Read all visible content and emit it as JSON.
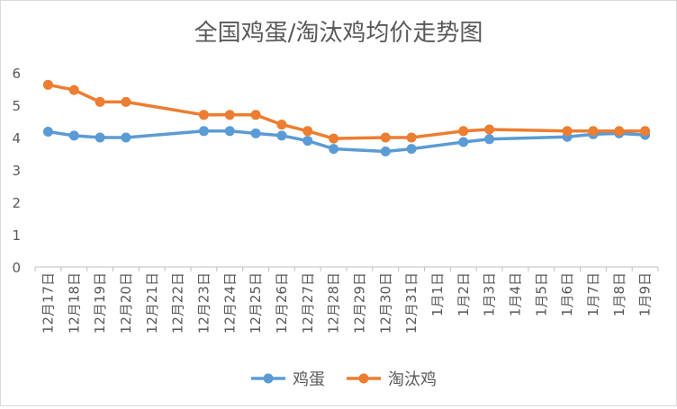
{
  "chart_data": {
    "type": "line",
    "title": "全国鸡蛋/淘汰鸡均价走势图",
    "xlabel": "",
    "ylabel": "",
    "ylim": [
      0,
      6
    ],
    "yticks": [
      "0",
      "1",
      "2",
      "3",
      "4",
      "5",
      "6"
    ],
    "grid": false,
    "legend_position": "bottom",
    "categories": [
      "12月17日",
      "12月18日",
      "12月19日",
      "12月20日",
      "12月21日",
      "12月22日",
      "12月23日",
      "12月24日",
      "12月25日",
      "12月26日",
      "12月27日",
      "12月28日",
      "12月29日",
      "12月30日",
      "12月31日",
      "1月1日",
      "1月2日",
      "1月3日",
      "1月4日",
      "1月5日",
      "1月6日",
      "1月7日",
      "1月8日",
      "1月9日"
    ],
    "series": [
      {
        "name": "鸡蛋",
        "color": "#5b9bd5",
        "values": [
          4.18,
          4.06,
          4.0,
          4.0,
          null,
          null,
          4.2,
          4.2,
          4.13,
          4.06,
          3.9,
          3.65,
          null,
          3.57,
          3.65,
          null,
          3.86,
          3.95,
          null,
          null,
          4.02,
          4.1,
          4.13,
          4.08
        ]
      },
      {
        "name": "淘汰鸡",
        "color": "#ed7d31",
        "values": [
          5.63,
          5.47,
          5.1,
          5.1,
          null,
          null,
          4.7,
          4.7,
          4.7,
          4.4,
          4.2,
          3.97,
          null,
          4.0,
          4.0,
          null,
          4.2,
          4.25,
          null,
          null,
          4.2,
          4.2,
          4.2,
          4.2
        ]
      }
    ]
  }
}
